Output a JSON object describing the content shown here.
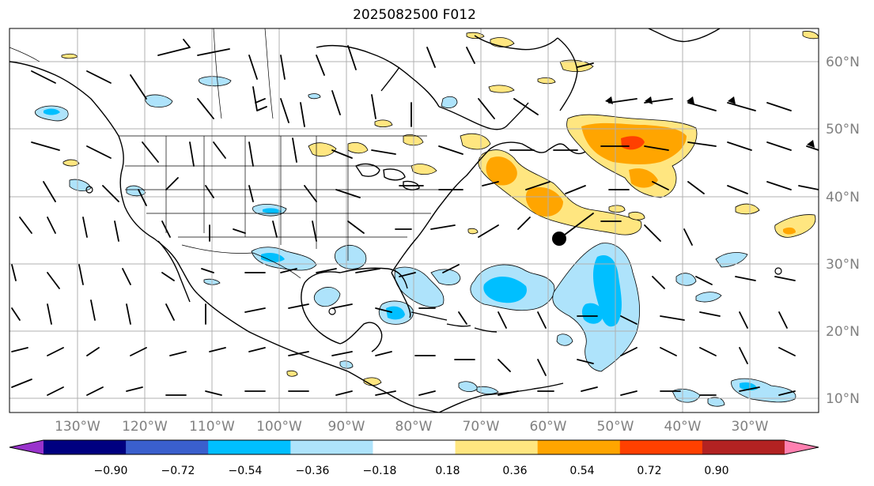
{
  "title": "2025082500 F012",
  "map": {
    "lon_labels": [
      "130°W",
      "120°W",
      "110°W",
      "100°W",
      "90°W",
      "80°W",
      "70°W",
      "60°W",
      "50°W",
      "40°W",
      "30°W"
    ],
    "lat_labels": [
      "60°N",
      "50°N",
      "40°N",
      "30°N",
      "20°N",
      "10°N"
    ]
  },
  "colorbar": {
    "tick_labels": [
      "−0.90",
      "−0.72",
      "−0.54",
      "−0.36",
      "−0.18",
      "0.18",
      "0.36",
      "0.54",
      "0.72",
      "0.90"
    ],
    "colors": [
      "#9933cc",
      "#000080",
      "#3a5fcd",
      "#00bfff",
      "#aee3fb",
      "#ffffff",
      "#ffe680",
      "#ffa500",
      "#ff4000",
      "#b22222",
      "#ff80b0"
    ],
    "extend_low_color": "#9933cc",
    "extend_high_color": "#ff80b0"
  }
}
